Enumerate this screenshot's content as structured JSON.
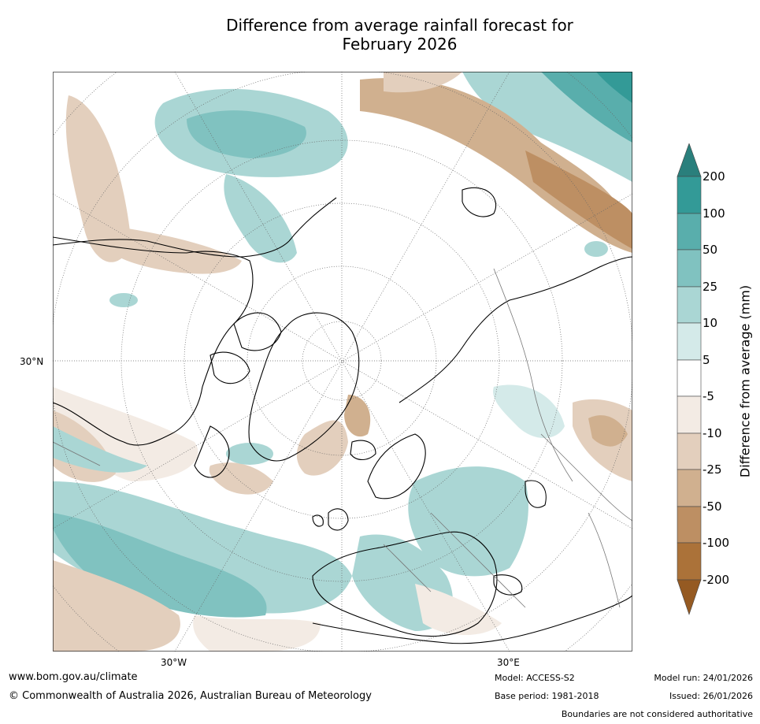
{
  "title": {
    "line1": "Difference from average rainfall forecast for",
    "line2": "February 2026"
  },
  "map": {
    "lat_label": "30°N",
    "lon_labels": {
      "west": "30°W",
      "east": "30°E"
    }
  },
  "legend": {
    "title": "Difference from average (mm)",
    "ticks": [
      "200",
      "100",
      "50",
      "25",
      "10",
      "5",
      "-5",
      "-10",
      "-25",
      "-50",
      "-100",
      "-200"
    ],
    "colors": {
      "extend_high": "#2a7f7c",
      "100_200": "#339a97",
      "50_100": "#59aeac",
      "25_50": "#80c2c0",
      "10_25": "#aad6d4",
      "5_10": "#d4eae9",
      "neutral": "#ffffff",
      "neg5_neg10": "#f3ebe4",
      "neg10_neg25": "#e3cfbd",
      "neg25_neg50": "#d0b08f",
      "neg50_neg100": "#bd8f63",
      "neg100_neg200": "#ab7239",
      "extend_low": "#955a22"
    }
  },
  "footer": {
    "url": "www.bom.gov.au/climate",
    "copyright": "© Commonwealth of Australia 2026, Australian Bureau of Meteorology",
    "model": "Model: ACCESS-S2",
    "base_period": "Base period: 1981-2018",
    "model_run": "Model run: 24/01/2026",
    "issued": "Issued: 26/01/2026",
    "disclaimer": "Boundaries are not considered authoritative"
  }
}
